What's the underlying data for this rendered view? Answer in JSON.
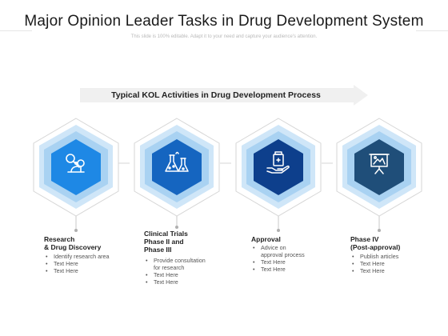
{
  "title": "Major Opinion Leader Tasks in Drug Development System",
  "subtitle": "This slide is 100% editable. Adapt it to your need and capture your audience's attention.",
  "banner": "Typical KOL Activities in Drug Development Process",
  "colors": {
    "accent_1": "#1e88e5",
    "accent_2": "#1565c0",
    "accent_3": "#0d3f8c",
    "accent_4": "#1f4e79",
    "hex_light": "#cfe6f8",
    "hex_mid": "#a9d2f2",
    "outline": "#d6d6d6"
  },
  "phases": [
    {
      "icon": "microscope-icon",
      "title_lines": [
        "Research",
        "& Drug Discovery"
      ],
      "bullets": [
        "Identify research area",
        "Text Here",
        "Text Here"
      ]
    },
    {
      "icon": "flask-icon",
      "title_lines": [
        "Clinical Trials",
        "Phase II and",
        "Phase III"
      ],
      "bullets": [
        "Provide consultation",
        "for research",
        "Text Here",
        "Text Here"
      ]
    },
    {
      "icon": "medicine-bottle-hand-icon",
      "title_lines": [
        "Approval"
      ],
      "bullets": [
        "Advice on",
        "approval process",
        "Text Here",
        "Text Here"
      ]
    },
    {
      "icon": "presentation-board-icon",
      "title_lines": [
        "Phase IV",
        "(Post-approval)"
      ],
      "bullets": [
        "Publish articles",
        "Text Here",
        "Text Here"
      ]
    }
  ]
}
